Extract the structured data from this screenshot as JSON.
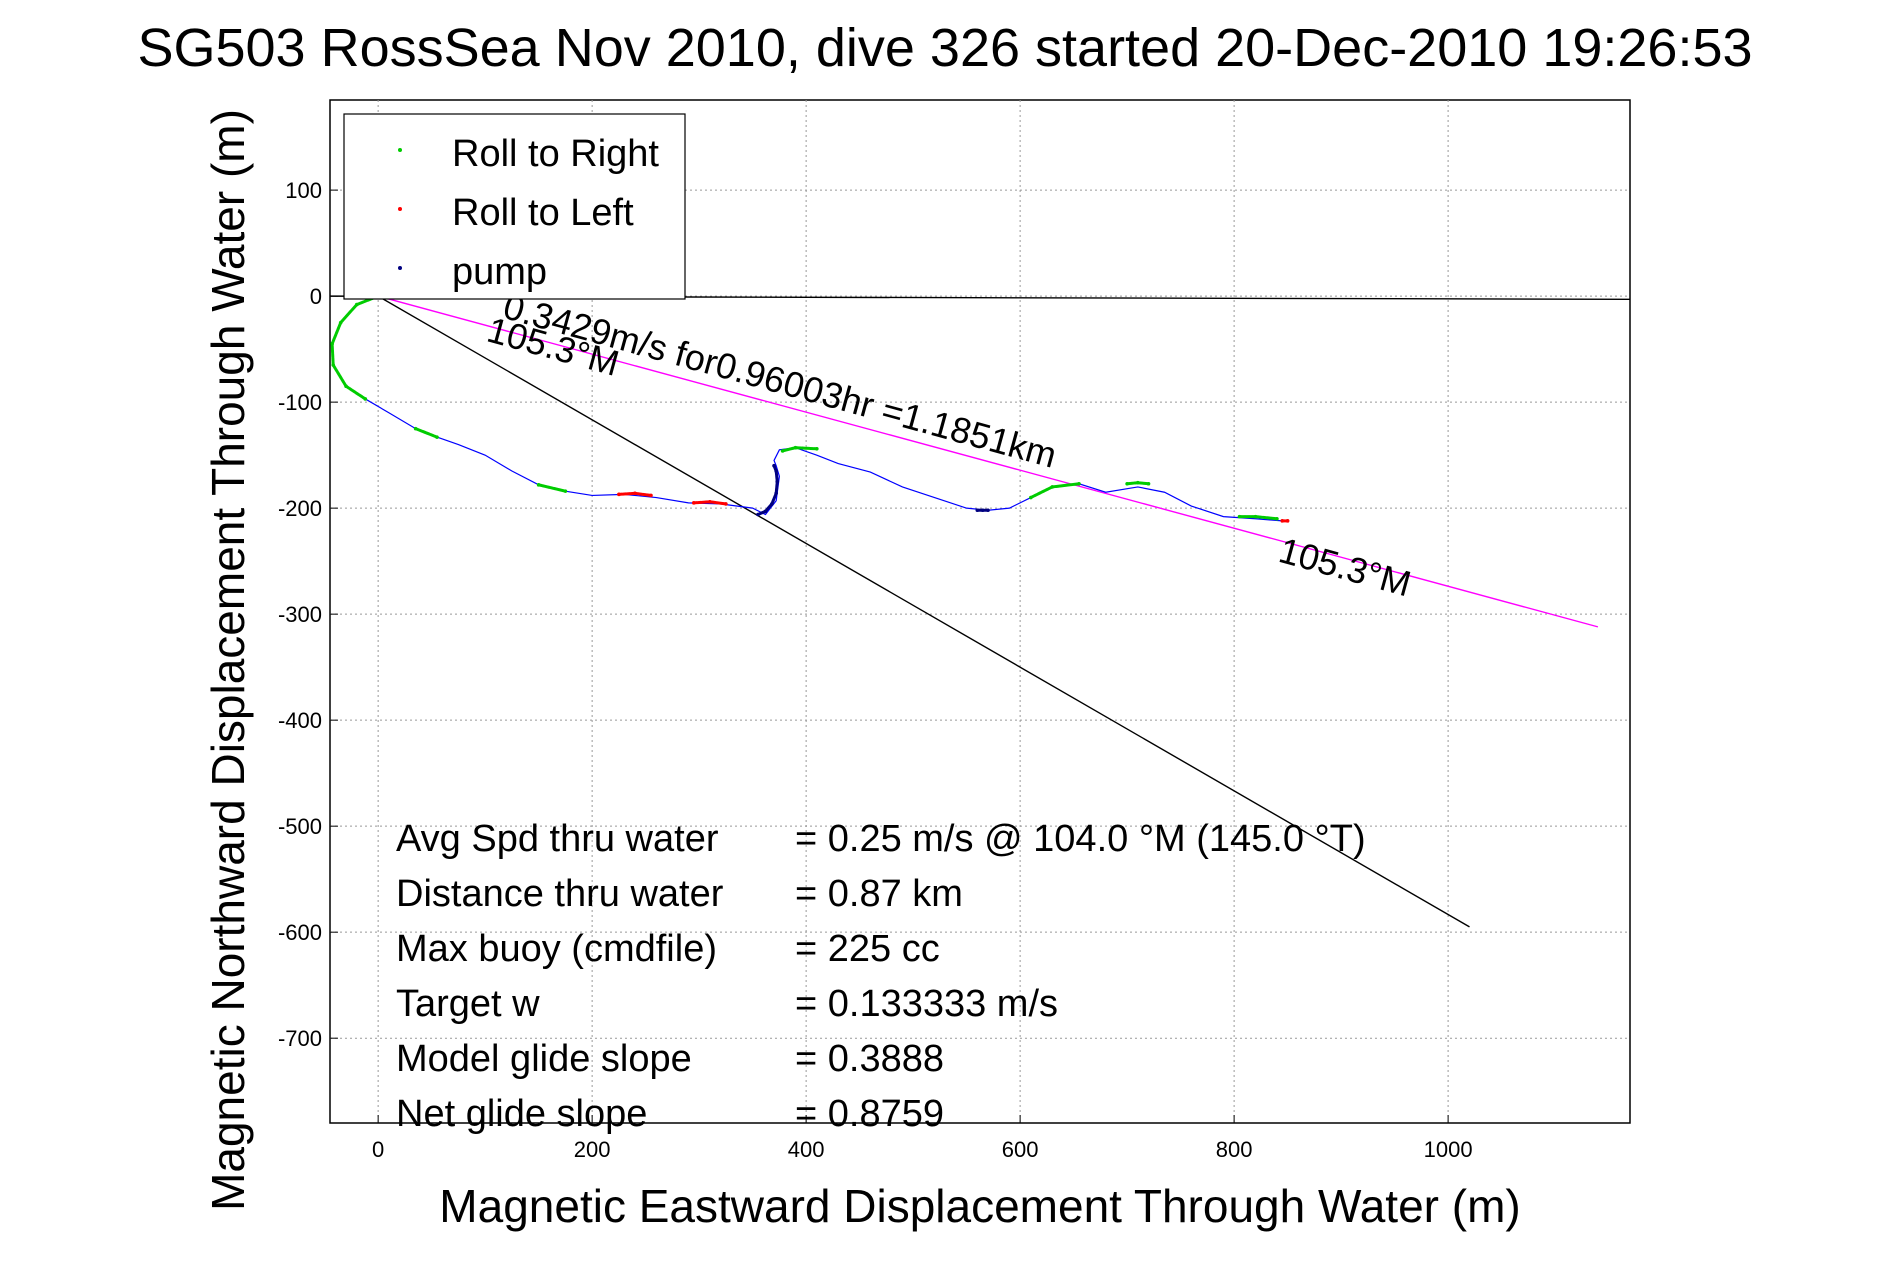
{
  "chart_data": {
    "type": "line",
    "title": "SG503 RossSea Nov 2010, dive 326 started 20-Dec-2010 19:26:53",
    "xlabel": "Magnetic Eastward Displacement Through Water (m)",
    "ylabel": "Magnetic Northward Displacement Through Water (m)",
    "xlim": [
      -45,
      1170
    ],
    "ylim": [
      -780,
      185
    ],
    "xticks": [
      0,
      200,
      400,
      600,
      800,
      1000
    ],
    "yticks": [
      100,
      0,
      -100,
      -200,
      -300,
      -400,
      -500,
      -600,
      -700
    ],
    "grid": true,
    "legend_position": "top-left",
    "legend": [
      {
        "label": "Roll to Right",
        "color": "#00cc00"
      },
      {
        "label": "Roll to Left",
        "color": "#ff0000"
      },
      {
        "label": "pump",
        "color": "#000080"
      }
    ],
    "track": {
      "color": "#0000ff",
      "x": [
        0,
        -20,
        -35,
        -43,
        -42,
        -30,
        -12,
        10,
        35,
        55,
        75,
        100,
        125,
        150,
        175,
        200,
        230,
        260,
        290,
        320,
        350,
        362,
        372,
        375,
        372,
        370,
        375,
        390,
        410,
        430,
        460,
        490,
        520,
        550,
        570,
        590,
        610,
        630,
        655,
        680,
        710,
        735,
        760,
        790,
        820,
        845
      ],
      "y": [
        0,
        -8,
        -25,
        -45,
        -65,
        -85,
        -97,
        -110,
        -125,
        -133,
        -140,
        -150,
        -165,
        -178,
        -184,
        -188,
        -187,
        -190,
        -195,
        -196,
        -200,
        -206,
        -193,
        -170,
        -160,
        -155,
        -145,
        -143,
        -150,
        -158,
        -166,
        -180,
        -190,
        -200,
        -202,
        -200,
        -190,
        -180,
        -177,
        -185,
        -180,
        -185,
        -198,
        -208,
        -210,
        -212
      ]
    },
    "roll_right": [
      {
        "x": [
          0,
          -20,
          -35,
          -43,
          -42,
          -30,
          -12
        ],
        "y": [
          0,
          -8,
          -25,
          -45,
          -65,
          -85,
          -97
        ]
      },
      {
        "x": [
          35,
          55
        ],
        "y": [
          -125,
          -133
        ]
      },
      {
        "x": [
          150,
          175
        ],
        "y": [
          -178,
          -184
        ]
      },
      {
        "x": [
          378,
          390,
          410
        ],
        "y": [
          -146,
          -143,
          -144
        ]
      },
      {
        "x": [
          610,
          630,
          655
        ],
        "y": [
          -190,
          -180,
          -177
        ]
      },
      {
        "x": [
          700,
          710,
          720
        ],
        "y": [
          -177,
          -176,
          -177
        ]
      },
      {
        "x": [
          805,
          820,
          840
        ],
        "y": [
          -208,
          -208,
          -210
        ]
      }
    ],
    "roll_left": [
      {
        "x": [
          225,
          240,
          255
        ],
        "y": [
          -187,
          -186,
          -188
        ]
      },
      {
        "x": [
          295,
          310,
          325
        ],
        "y": [
          -195,
          -194,
          -196
        ]
      },
      {
        "x": [
          845,
          850
        ],
        "y": [
          -212,
          -212
        ]
      }
    ],
    "pump": [
      {
        "x": [
          355,
          362,
          368,
          372,
          373,
          372,
          370
        ],
        "y": [
          -206,
          -203,
          -196,
          -186,
          -175,
          -165,
          -160
        ]
      },
      {
        "x": [
          560,
          565,
          570
        ],
        "y": [
          -202,
          -202,
          -202
        ]
      }
    ],
    "reference_lines": [
      {
        "color": "#000000",
        "x": [
          0,
          1020
        ],
        "y": [
          0,
          -595
        ]
      },
      {
        "color": "#ff00ff",
        "x": [
          0,
          1140
        ],
        "y": [
          0,
          -312
        ]
      },
      {
        "color": "#000000",
        "x": [
          -45,
          1170
        ],
        "y": [
          0,
          -3
        ]
      }
    ],
    "annotations": [
      {
        "text": "0.3429m/s for0.96003hr =1.1851km",
        "x": 115,
        "y": -20,
        "rotation": 15.3
      },
      {
        "text": "105.3°M",
        "x": 100,
        "y": -42,
        "rotation": 15.3
      },
      {
        "text": "105.3°M",
        "x": 840,
        "y": -250,
        "rotation": 15.3
      }
    ],
    "stats": [
      {
        "label": "Avg Spd thru water",
        "value": "=  0.25 m/s @ 104.0 °M (145.0 °T)"
      },
      {
        "label": "Distance thru water",
        "value": "=  0.87 km"
      },
      {
        "label": "Max buoy (cmdfile)",
        "value": "= 225 cc"
      },
      {
        "label": "Target w",
        "value": "= 0.133333 m/s"
      },
      {
        "label": "Model glide slope",
        "value": "= 0.3888"
      },
      {
        "label": "Net glide slope",
        "value": "= 0.8759"
      }
    ]
  }
}
